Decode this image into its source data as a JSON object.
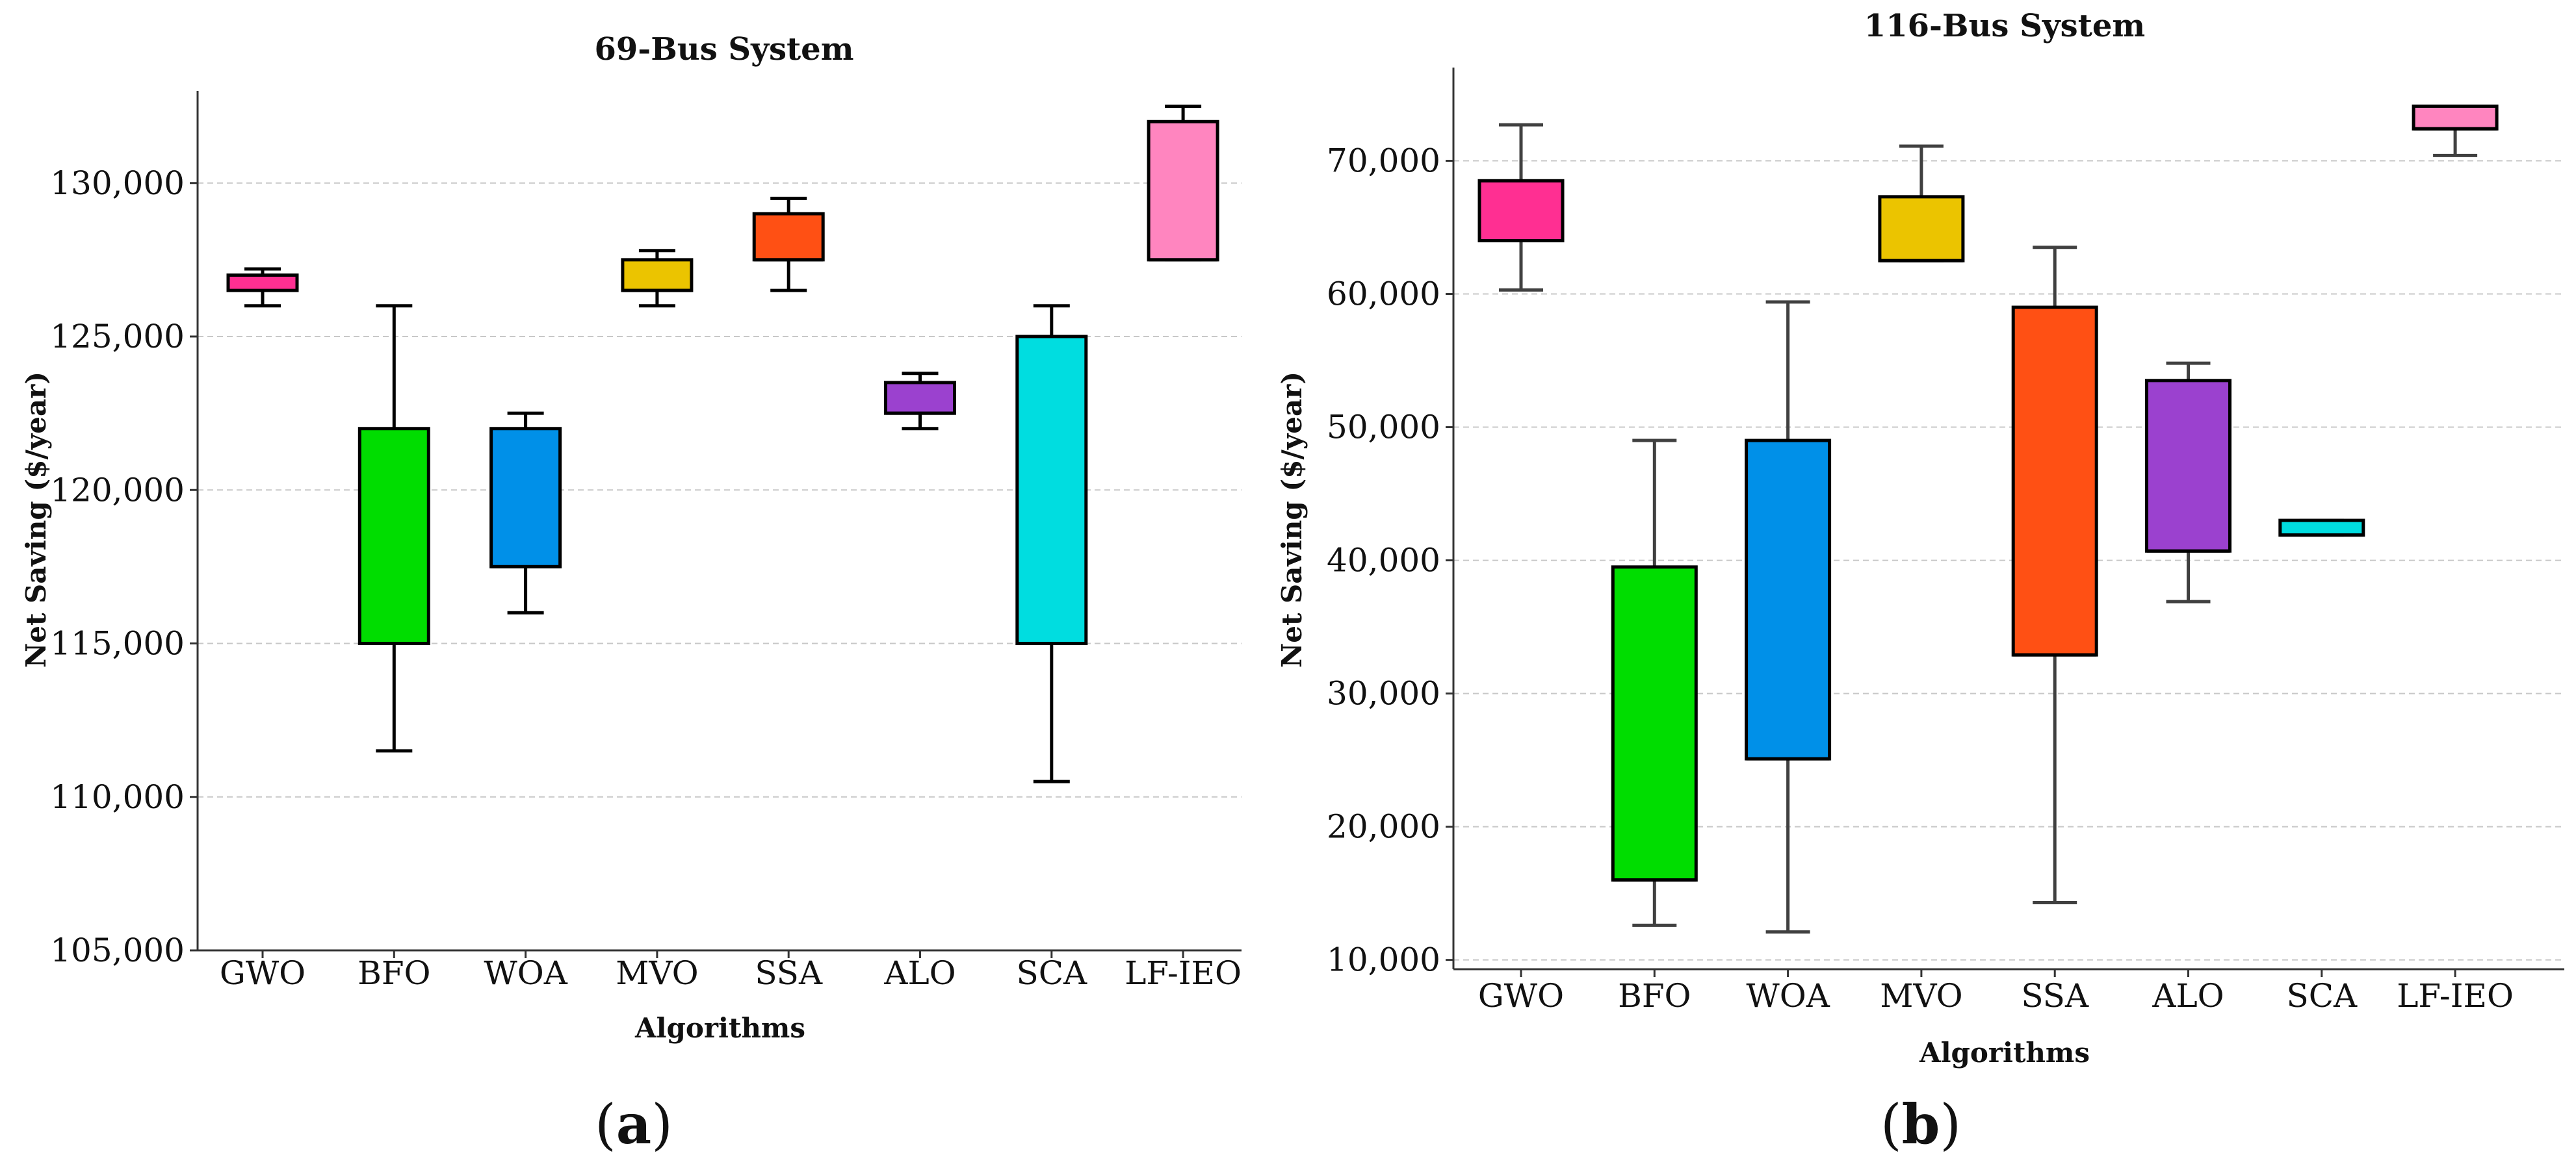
{
  "chart_data": [
    {
      "type": "box",
      "panel_label": "a",
      "title": "69-Bus System",
      "xlabel": "Algorithms",
      "ylabel": "Net Saving ($/year)",
      "ylim": [
        105000,
        133000
      ],
      "yticks": [
        105000,
        110000,
        115000,
        120000,
        125000,
        130000
      ],
      "ytick_labels": [
        "105,000",
        "110,000",
        "115,000",
        "120,000",
        "125,000",
        "130,000"
      ],
      "grid": true,
      "categories": [
        "GWO",
        "BFO",
        "WOA",
        "MVO",
        "SSA",
        "ALO",
        "SCA",
        "LF-IEO"
      ],
      "colors": [
        "#ff2f92",
        "#00dd00",
        "#0090e8",
        "#ebc400",
        "#ff5014",
        "#9b41cf",
        "#00dde0",
        "#ff85bf"
      ],
      "boxes": [
        {
          "min": 126000,
          "q1": 126500,
          "median": 127000,
          "q3": 127000,
          "max": 127200
        },
        {
          "min": 111500,
          "q1": 115000,
          "median": 115000,
          "q3": 122000,
          "max": 126000
        },
        {
          "min": 116000,
          "q1": 117500,
          "median": 117500,
          "q3": 122000,
          "max": 122500
        },
        {
          "min": 126000,
          "q1": 126500,
          "median": 126500,
          "q3": 127500,
          "max": 127800
        },
        {
          "min": 126500,
          "q1": 127500,
          "median": 127500,
          "q3": 129000,
          "max": 129500
        },
        {
          "min": 122000,
          "q1": 122500,
          "median": 122500,
          "q3": 123500,
          "max": 123800
        },
        {
          "min": 110500,
          "q1": 115000,
          "median": 115000,
          "q3": 125000,
          "max": 126000
        },
        {
          "min": 127500,
          "q1": 127500,
          "median": 127500,
          "q3": 132000,
          "max": 132500
        }
      ]
    },
    {
      "type": "box",
      "panel_label": "b",
      "title": "116-Bus System",
      "xlabel": "Algorithms",
      "ylabel": "Net Saving ($/year)",
      "ylim": [
        9300,
        77000
      ],
      "yticks": [
        10000,
        20000,
        30000,
        40000,
        50000,
        60000,
        70000
      ],
      "ytick_labels": [
        "10,000",
        "20,000",
        "30,000",
        "40,000",
        "50,000",
        "60,000",
        "70,000"
      ],
      "grid": true,
      "categories": [
        "GWO",
        "BFO",
        "WOA",
        "MVO",
        "SSA",
        "ALO",
        "SCA",
        "LF-IEO"
      ],
      "colors": [
        "#ff2f92",
        "#00dd00",
        "#0090e8",
        "#ebc400",
        "#ff5014",
        "#9b41cf",
        "#00dde0",
        "#ff85bf"
      ],
      "boxes": [
        {
          "min": 60300,
          "q1": 64000,
          "median": 64000,
          "q3": 68500,
          "max": 72700
        },
        {
          "min": 12600,
          "q1": 16000,
          "median": 16000,
          "q3": 39500,
          "max": 49000
        },
        {
          "min": 12100,
          "q1": 25100,
          "median": 25100,
          "q3": 49000,
          "max": 59400
        },
        {
          "min": 62500,
          "q1": 62500,
          "median": 62500,
          "q3": 67300,
          "max": 71100
        },
        {
          "min": 14300,
          "q1": 32900,
          "median": 32900,
          "q3": 59000,
          "max": 63500
        },
        {
          "min": 36900,
          "q1": 40700,
          "median": 40700,
          "q3": 53500,
          "max": 54800
        },
        {
          "min": 41900,
          "q1": 41900,
          "median": 41900,
          "q3": 43000,
          "max": 43000
        },
        {
          "min": 70400,
          "q1": 72400,
          "median": 72400,
          "q3": 74100,
          "max": 74100
        }
      ]
    }
  ]
}
